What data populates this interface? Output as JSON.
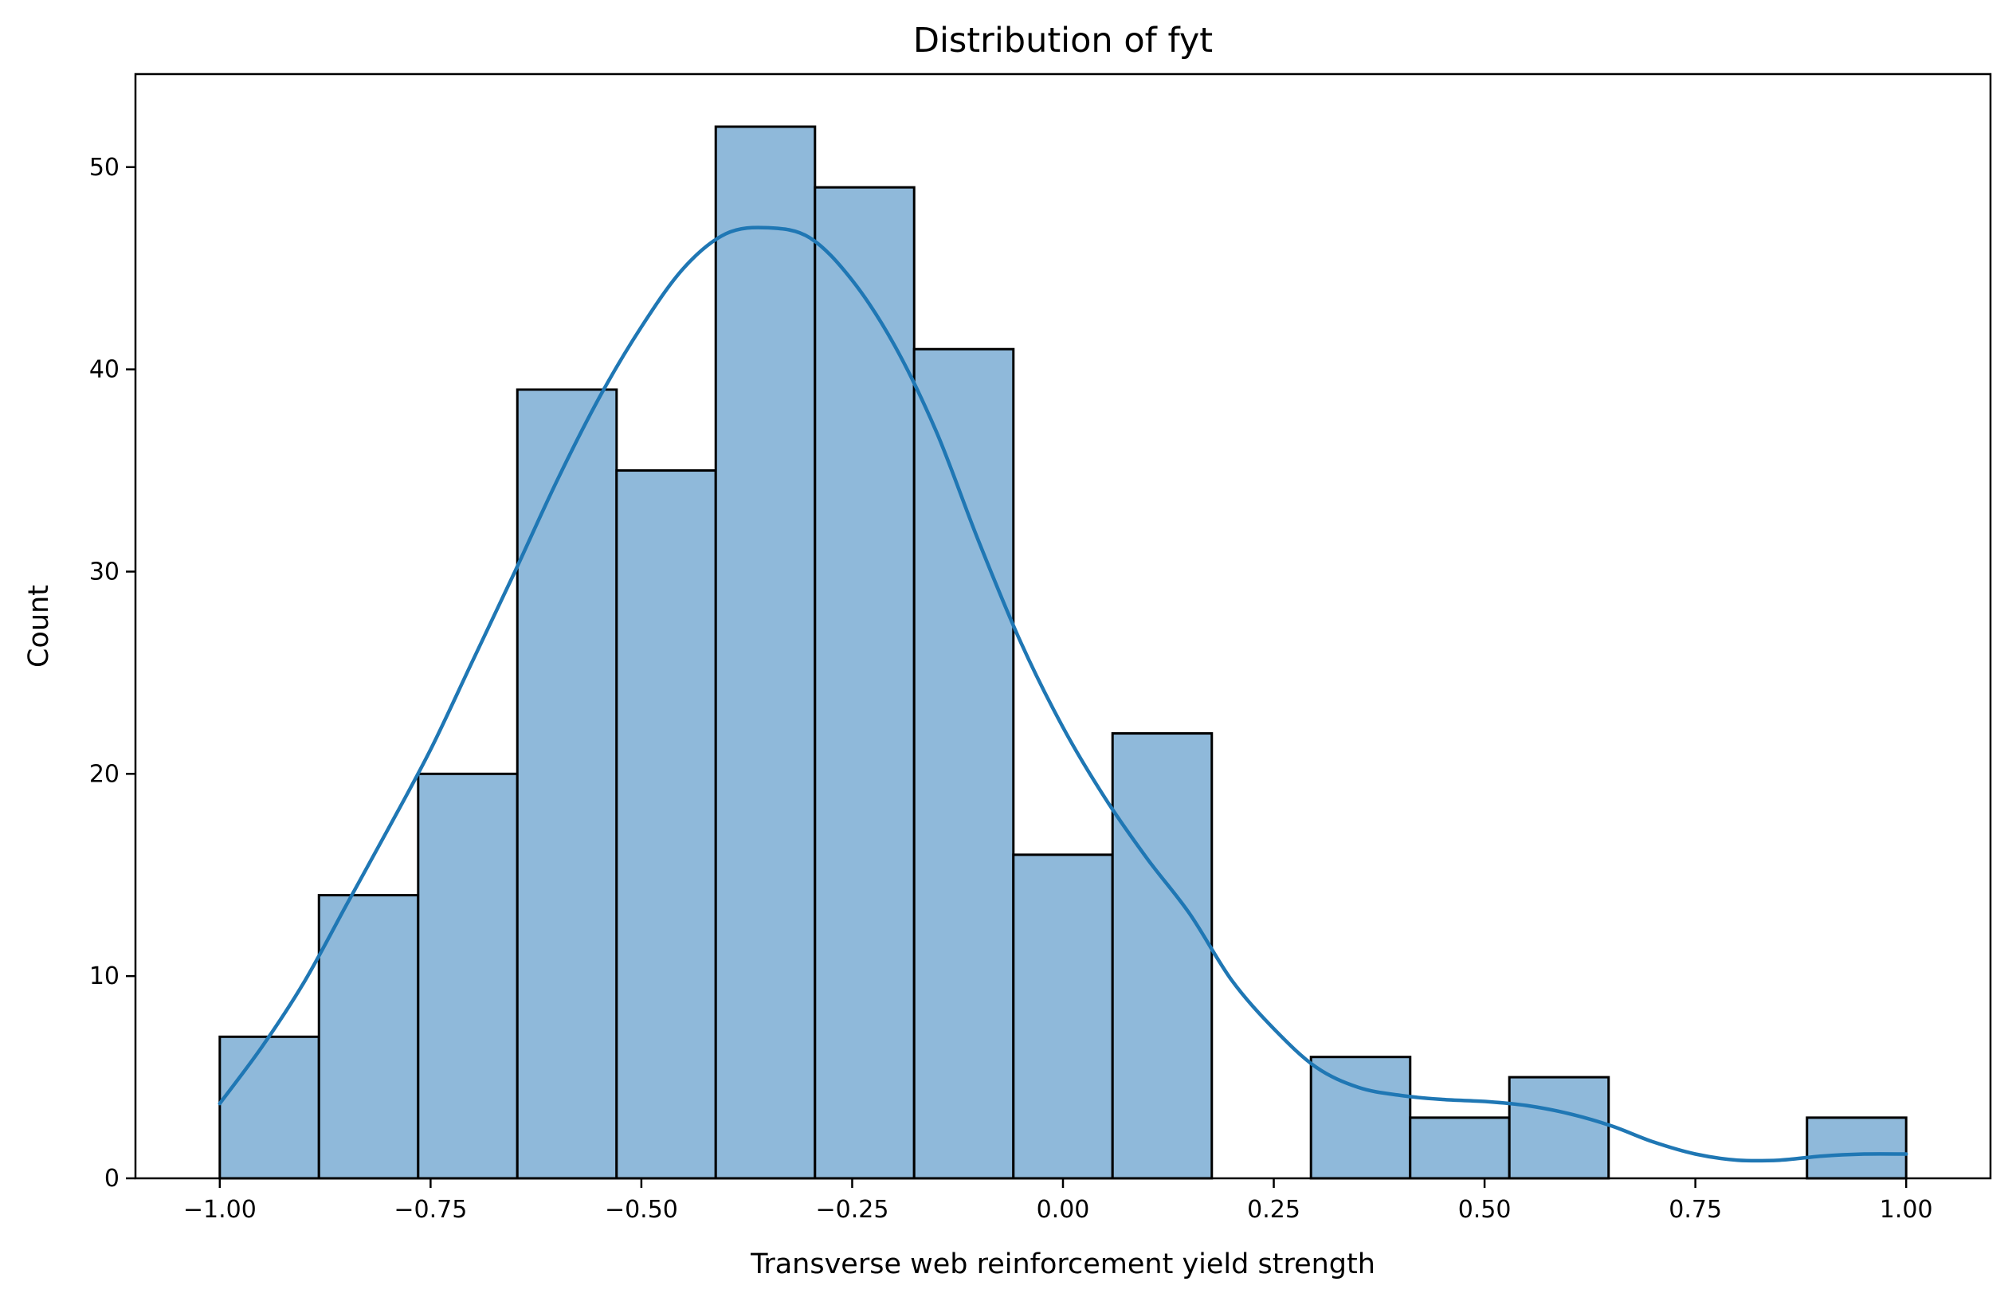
{
  "chart_data": {
    "type": "bar",
    "title": "Distribution of fyt",
    "xlabel": "Transverse web reinforcement yield strength",
    "ylabel": "Count",
    "xlim": [
      -1.1,
      1.1
    ],
    "ylim": [
      0,
      54.6
    ],
    "bin_edges": [
      -1.0,
      -0.8824,
      -0.7647,
      -0.6471,
      -0.5294,
      -0.4118,
      -0.2941,
      -0.1765,
      -0.0588,
      0.0588,
      0.1765,
      0.2941,
      0.4118,
      0.5294,
      0.6471,
      0.7647,
      0.8824,
      1.0
    ],
    "values": [
      7,
      14,
      20,
      39,
      35,
      52,
      49,
      41,
      16,
      22,
      0,
      6,
      3,
      5,
      0,
      0,
      3
    ],
    "x_ticks": [
      -1.0,
      -0.75,
      -0.5,
      -0.25,
      0.0,
      0.25,
      0.5,
      0.75,
      1.0
    ],
    "x_tick_labels": [
      "−1.00",
      "−0.75",
      "−0.50",
      "−0.25",
      "0.00",
      "0.25",
      "0.50",
      "0.75",
      "1.00"
    ],
    "y_ticks": [
      0,
      10,
      20,
      30,
      40,
      50
    ],
    "y_tick_labels": [
      "0",
      "10",
      "20",
      "30",
      "40",
      "50"
    ],
    "kde": {
      "x": [
        -1.0,
        -0.95,
        -0.9,
        -0.85,
        -0.8,
        -0.75,
        -0.7,
        -0.65,
        -0.6,
        -0.55,
        -0.5,
        -0.45,
        -0.4,
        -0.35,
        -0.3,
        -0.25,
        -0.2,
        -0.15,
        -0.1,
        -0.05,
        0.0,
        0.05,
        0.1,
        0.15,
        0.2,
        0.25,
        0.3,
        0.35,
        0.4,
        0.45,
        0.5,
        0.55,
        0.6,
        0.65,
        0.7,
        0.75,
        0.8,
        0.85,
        0.9,
        0.95,
        1.0
      ],
      "y": [
        3.7,
        6.5,
        9.7,
        13.5,
        17.3,
        21.2,
        25.6,
        30.0,
        34.5,
        38.6,
        42.1,
        45.0,
        46.7,
        47.0,
        46.5,
        44.4,
        41.2,
        36.9,
        31.5,
        26.5,
        22.3,
        18.8,
        15.8,
        13.1,
        9.8,
        7.4,
        5.5,
        4.5,
        4.1,
        3.9,
        3.8,
        3.6,
        3.2,
        2.6,
        1.8,
        1.2,
        0.9,
        0.9,
        1.1,
        1.2,
        1.2
      ]
    },
    "grid": false,
    "legend": "none",
    "colors": {
      "bar_fill": "#8fb9da",
      "bar_edge": "#000000",
      "kde_line": "#1f77b4",
      "axes": "#000000"
    }
  }
}
